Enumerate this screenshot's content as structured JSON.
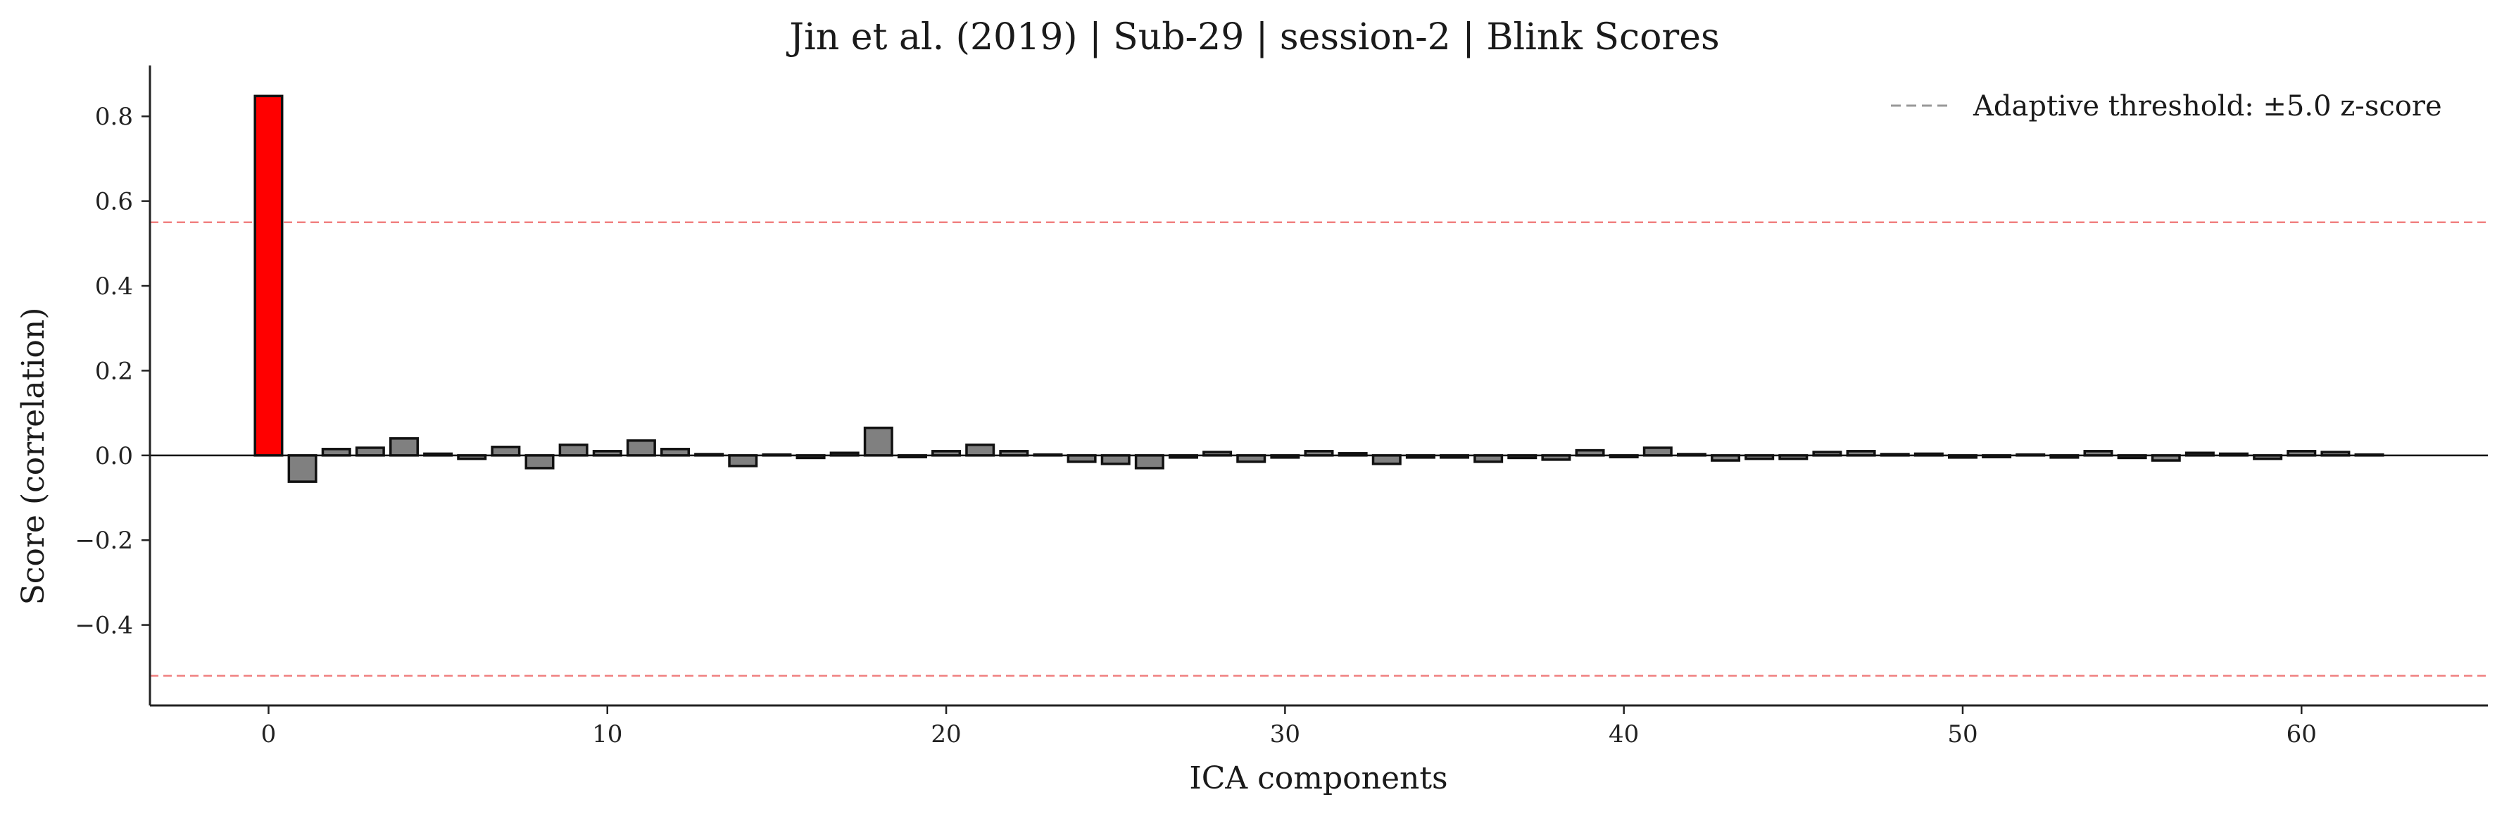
{
  "chart_data": {
    "type": "bar",
    "title": "Jin et al. (2019) | Sub-29 | session-2 | Blink Scores",
    "xlabel": "ICA components",
    "ylabel": "Score (correlation)",
    "xlim": [
      -3.5,
      65.5
    ],
    "ylim": [
      -0.59,
      0.92
    ],
    "xticks": [
      0,
      10,
      20,
      30,
      40,
      50,
      60
    ],
    "yticks": [
      -0.4,
      -0.2,
      0.0,
      0.2,
      0.4,
      0.6,
      0.8
    ],
    "ytick_labels": [
      "−0.4",
      "−0.2",
      "0.0",
      "0.2",
      "0.4",
      "0.6",
      "0.8"
    ],
    "x": [
      0,
      1,
      2,
      3,
      4,
      5,
      6,
      7,
      8,
      9,
      10,
      11,
      12,
      13,
      14,
      15,
      16,
      17,
      18,
      19,
      20,
      21,
      22,
      23,
      24,
      25,
      26,
      27,
      28,
      29,
      30,
      31,
      32,
      33,
      34,
      35,
      36,
      37,
      38,
      39,
      40,
      41,
      42,
      43,
      44,
      45,
      46,
      47,
      48,
      49,
      50,
      51,
      52,
      53,
      54,
      55,
      56,
      57,
      58,
      59,
      60,
      61,
      62
    ],
    "values": [
      0.848,
      -0.062,
      0.015,
      0.018,
      0.04,
      0.004,
      -0.008,
      0.02,
      -0.03,
      0.025,
      0.01,
      0.035,
      0.015,
      0.003,
      -0.025,
      0.002,
      -0.006,
      0.006,
      0.065,
      -0.004,
      0.01,
      0.025,
      0.01,
      0.002,
      -0.015,
      -0.02,
      -0.03,
      -0.005,
      0.008,
      -0.015,
      -0.005,
      0.01,
      0.005,
      -0.02,
      -0.005,
      -0.005,
      -0.015,
      -0.006,
      -0.01,
      0.012,
      -0.004,
      0.018,
      0.003,
      -0.012,
      -0.008,
      -0.008,
      0.008,
      0.01,
      0.003,
      0.004,
      -0.005,
      -0.004,
      0.002,
      -0.005,
      0.01,
      -0.006,
      -0.012,
      0.006,
      0.004,
      -0.008,
      0.01,
      0.008,
      0.002
    ],
    "highlight_indices": [
      0
    ],
    "bar_color": "#808080",
    "highlight_color": "#ff0000",
    "threshold_upper": 0.55,
    "threshold_lower": -0.52,
    "threshold_color": "#f08080",
    "legend": {
      "label": "Adaptive threshold: ±5.0 z-score",
      "position": "top-right",
      "line_color": "#999999"
    },
    "grid": false
  }
}
